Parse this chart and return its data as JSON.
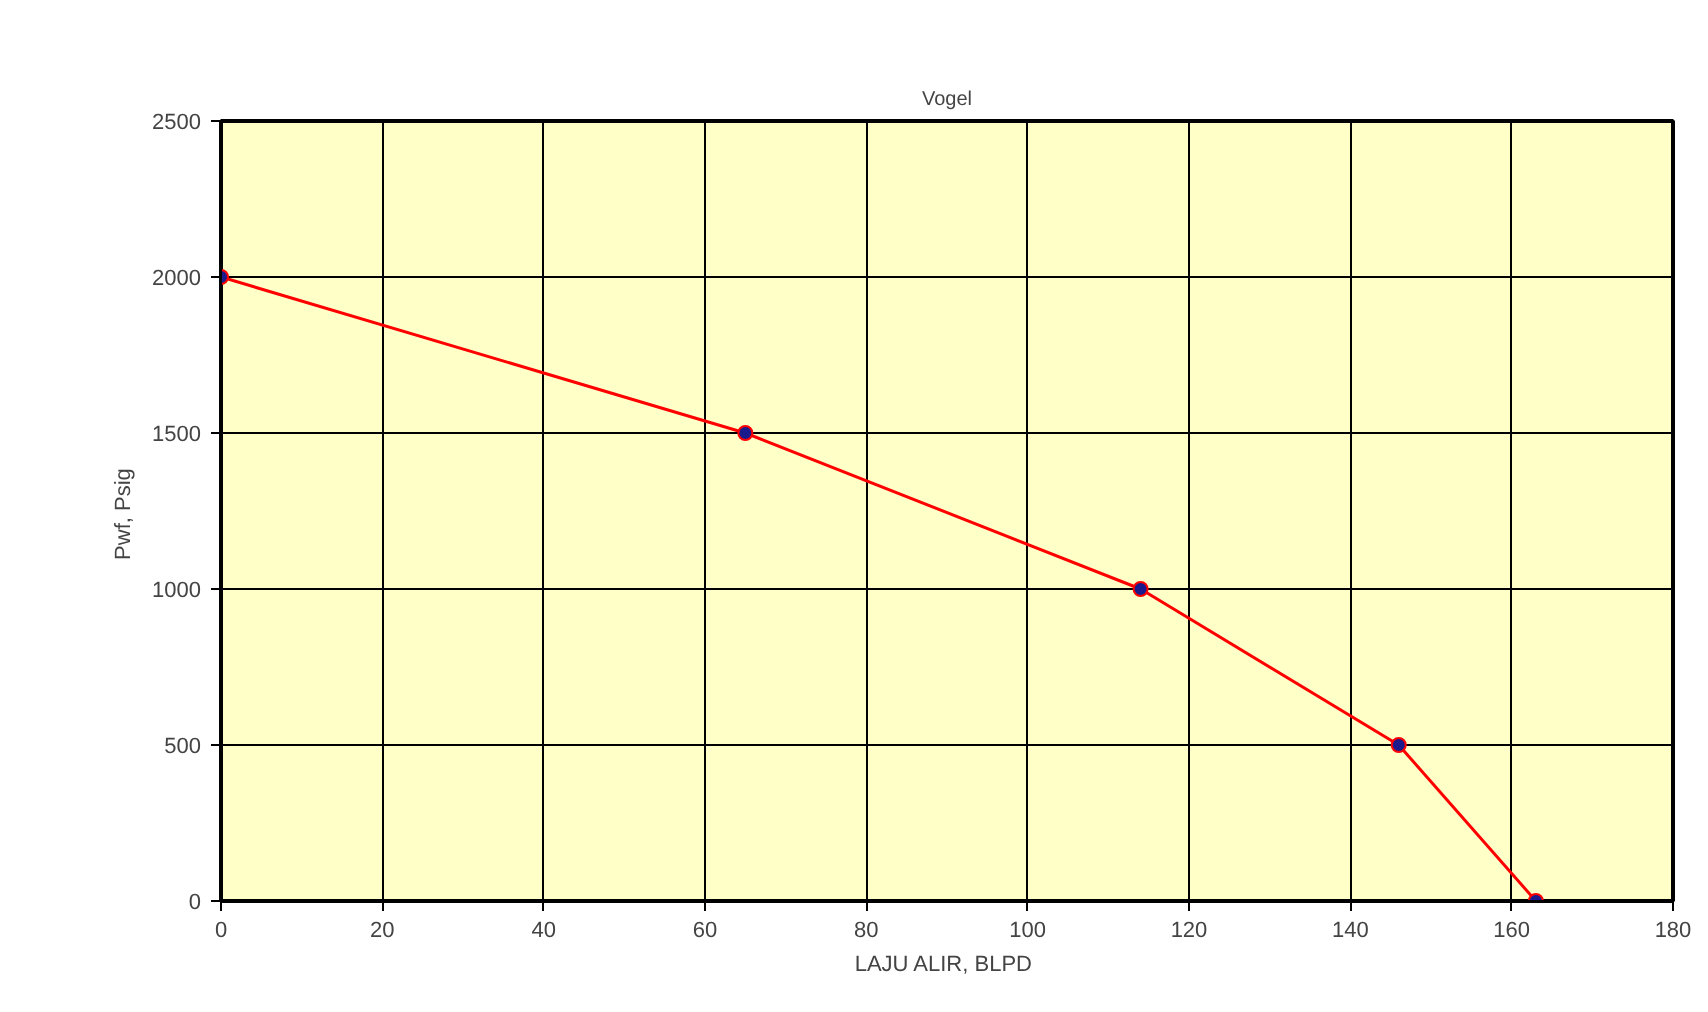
{
  "chart_data": {
    "type": "line",
    "title": "Vogel",
    "xlabel": "LAJU ALIR,  BLPD",
    "ylabel": "Pwf,  Psig",
    "x": [
      0,
      65,
      114,
      146,
      163
    ],
    "series": [
      {
        "color": "#ff0000",
        "values": [
          2000,
          1500,
          1000,
          500,
          0
        ]
      }
    ],
    "xlim": [
      0,
      180
    ],
    "xticks": [
      0,
      20,
      40,
      60,
      80,
      100,
      120,
      140,
      160,
      180
    ],
    "ylim": [
      0,
      2500
    ],
    "yticks": [
      0,
      500,
      1000,
      1500,
      2000,
      2500
    ],
    "grid": true,
    "marker": "circle",
    "line_style": "solid"
  }
}
